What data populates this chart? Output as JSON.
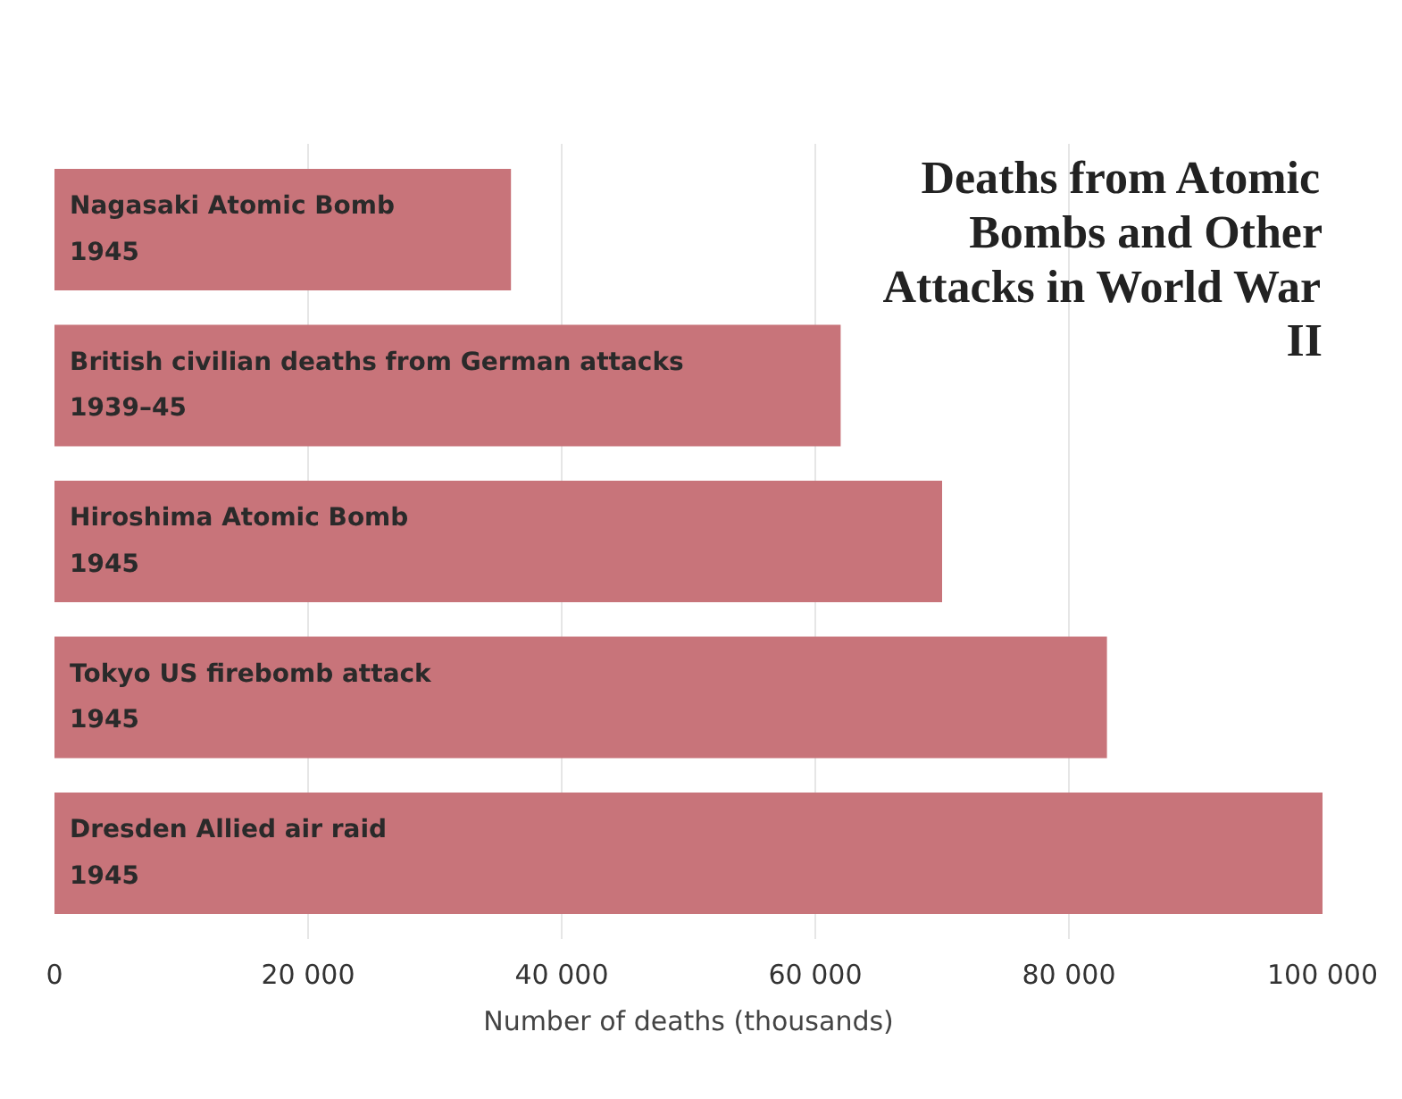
{
  "chart_data": {
    "type": "bar",
    "orientation": "horizontal",
    "title": "Deaths from Atomic Bombs and Other Attacks in World War II",
    "xlabel": "Number of deaths (thousands)",
    "categories": [
      "Nagasaki Atomic Bomb\n1945",
      "British civilian deaths from German attacks\n1939–45",
      "Hiroshima Atomic Bomb\n1945",
      "Tokyo US firebomb attack\n1945",
      "Dresden Allied air raid\n1945"
    ],
    "values": [
      36000,
      62000,
      70000,
      83000,
      100000
    ],
    "color": "#c8747a",
    "xlim": [
      0,
      100000
    ],
    "xticks": [
      0,
      {
        "value": 20000,
        "label": "20 000"
      },
      {
        "value": 40000,
        "label": "40 000"
      },
      {
        "value": 60000,
        "label": "60 000"
      },
      {
        "value": 80000,
        "label": "80 000"
      },
      {
        "value": 100000,
        "label": "100 000"
      }
    ],
    "grid": "x"
  }
}
